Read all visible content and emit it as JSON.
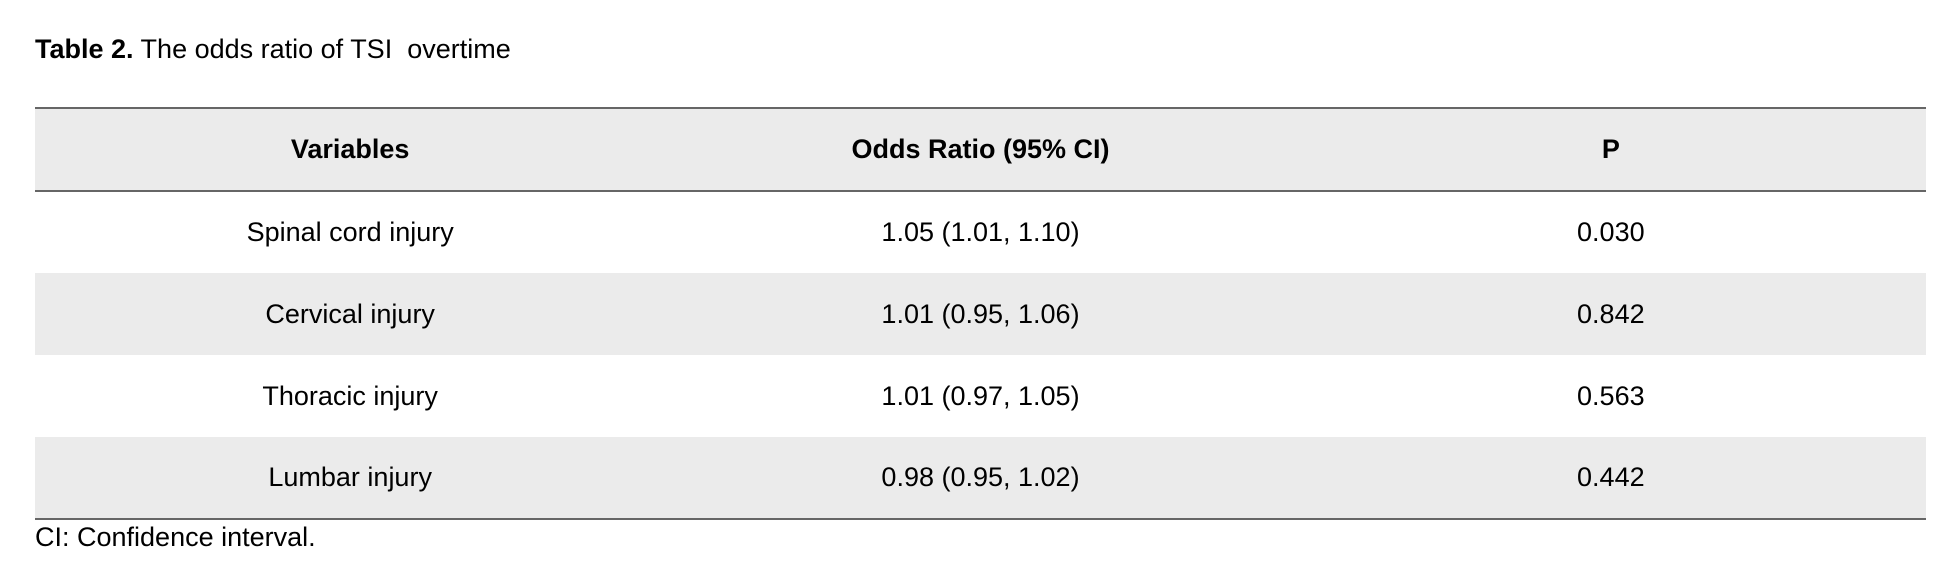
{
  "caption": {
    "label": "Table 2.",
    "text": " The odds ratio of TSI  overtime"
  },
  "table": {
    "header": [
      "Variables",
      "Odds Ratio (95% CI)",
      "P"
    ],
    "rows": [
      [
        "Spinal cord injury",
        "1.05 (1.01, 1.10)",
        "0.030"
      ],
      [
        "Cervical injury",
        "1.01 (0.95, 1.06)",
        "0.842"
      ],
      [
        "Thoracic injury",
        "1.01 (0.97, 1.05)",
        "0.563"
      ],
      [
        "Lumbar injury",
        "0.98 (0.95, 1.02)",
        "0.442"
      ]
    ]
  },
  "footnote": "CI: Confidence interval."
}
